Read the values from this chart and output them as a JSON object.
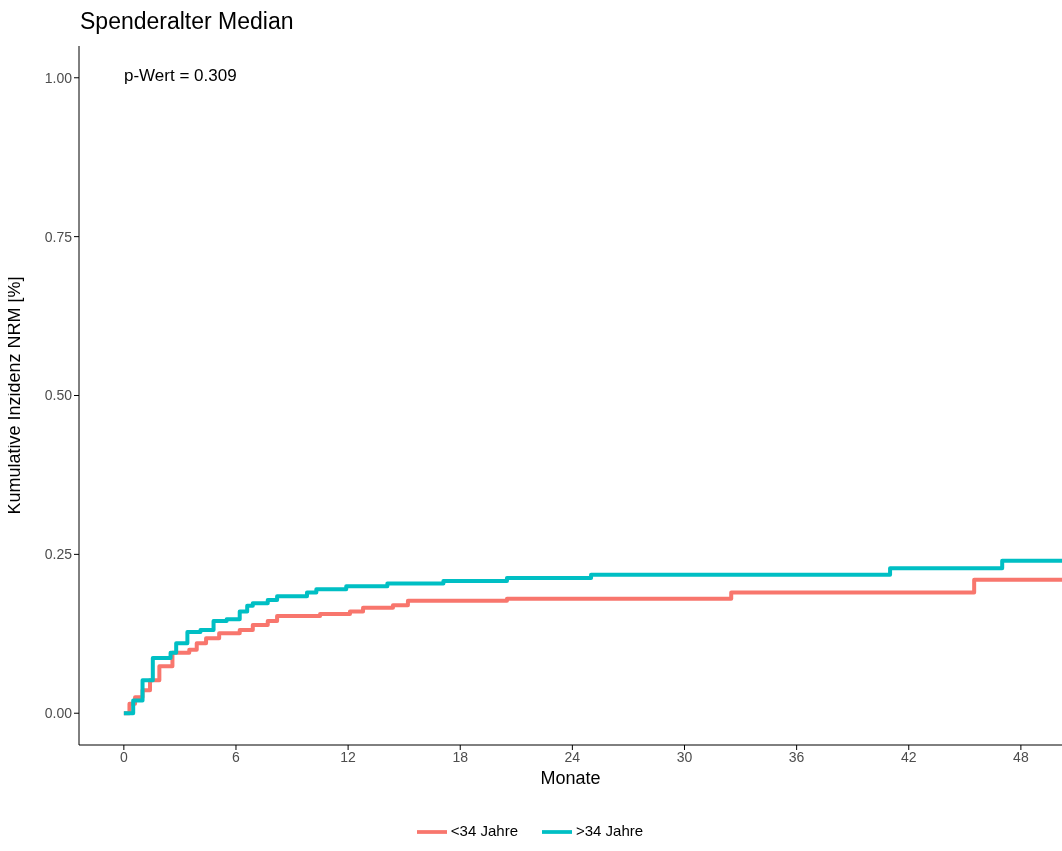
{
  "chart_data": {
    "type": "step",
    "title": "Spenderalter Median",
    "xlabel": "Monate",
    "ylabel": "Kumulative Inzidenz NRM [%]",
    "annotations": [
      "p-Wert = 0.309"
    ],
    "xlim": [
      -2.4,
      50.2
    ],
    "xticks": [
      0,
      6,
      12,
      18,
      24,
      30,
      36,
      42,
      48
    ],
    "ylim": [
      -0.05,
      1.05
    ],
    "yticks": [
      {
        "value": 0,
        "label": "0.00"
      },
      {
        "value": 0.25,
        "label": "0.25"
      },
      {
        "value": 0.5,
        "label": "0.50"
      },
      {
        "value": 0.75,
        "label": "0.75"
      },
      {
        "value": 1,
        "label": "1.00"
      }
    ],
    "grid": false,
    "legend": "bottom",
    "marker": "none",
    "line_style": "solid",
    "series": [
      {
        "name": "<34 Jahre",
        "color": "#f8766d",
        "x": [
          0,
          0.3,
          0.6,
          1.0,
          1.4,
          1.9,
          2.6,
          3.5,
          3.9,
          4.4,
          5.1,
          6.2,
          6.9,
          7.7,
          8.2,
          10.5,
          12.1,
          12.8,
          14.4,
          15.2,
          20.5,
          32.5,
          45.5,
          50.2
        ],
        "values": [
          0,
          0.015,
          0.025,
          0.036,
          0.052,
          0.074,
          0.095,
          0.1,
          0.11,
          0.118,
          0.126,
          0.131,
          0.139,
          0.145,
          0.153,
          0.156,
          0.16,
          0.166,
          0.17,
          0.177,
          0.18,
          0.19,
          0.21,
          0.21
        ]
      },
      {
        "name": ">34 Jahre",
        "color": "#00bfc4",
        "x": [
          0,
          0.5,
          1.0,
          1.55,
          2.5,
          2.8,
          3.4,
          4.1,
          4.8,
          5.5,
          6.2,
          6.6,
          6.9,
          7.7,
          8.2,
          9.8,
          10.3,
          11.9,
          14.1,
          17.1,
          20.5,
          25,
          41,
          47,
          50.2
        ],
        "values": [
          0,
          0.02,
          0.052,
          0.087,
          0.095,
          0.11,
          0.128,
          0.131,
          0.145,
          0.148,
          0.16,
          0.169,
          0.173,
          0.178,
          0.184,
          0.19,
          0.195,
          0.2,
          0.204,
          0.208,
          0.213,
          0.218,
          0.228,
          0.24,
          0.24
        ]
      }
    ]
  }
}
